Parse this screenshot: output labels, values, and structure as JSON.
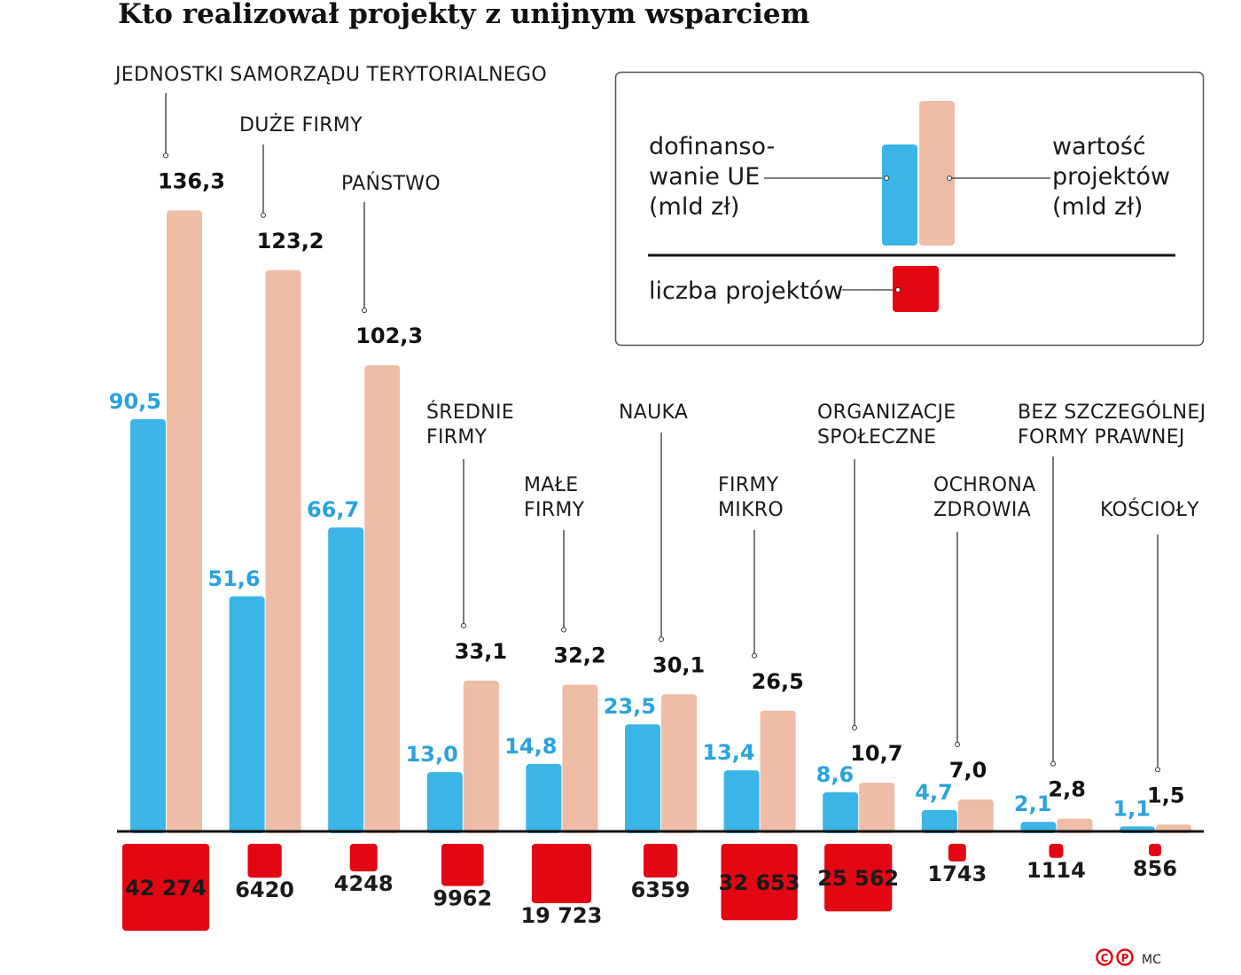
{
  "chart_data": {
    "type": "bar",
    "title": "Kto realizował projekty z unijnym wsparciem",
    "categories": [
      "JEDNOSTKI SAMORZĄDU TERYTORIALNEGO",
      "DUŻE FIRMY",
      "PAŃSTWO",
      "ŚREDNIE FIRMY",
      "MAŁE FIRMY",
      "NAUKA",
      "FIRMY MIKRO",
      "ORGANIZACJE SPOŁECZNE",
      "OCHRONA ZDROWIA",
      "BEZ SZCZEGÓLNEJ FORMY PRAWNEJ",
      "KOŚCIOŁY"
    ],
    "series": [
      {
        "name": "dofinansowanie UE (mld zł)",
        "color": "#3bb4e6",
        "values": [
          90.5,
          51.6,
          66.7,
          13.0,
          14.8,
          23.5,
          13.4,
          8.6,
          4.7,
          2.1,
          1.1
        ],
        "labels": [
          "90,5",
          "51,6",
          "66,7",
          "13,0",
          "14,8",
          "23,5",
          "13,4",
          "8,6",
          "4,7",
          "2,1",
          "1,1"
        ]
      },
      {
        "name": "wartość projektów (mld zł)",
        "color": "#efbca6",
        "values": [
          136.3,
          123.2,
          102.3,
          33.1,
          32.2,
          30.1,
          26.5,
          10.7,
          7.0,
          2.8,
          1.5
        ],
        "labels": [
          "136,3",
          "123,2",
          "102,3",
          "33,1",
          "32,2",
          "30,1",
          "26,5",
          "10,7",
          "7,0",
          "2,8",
          "1,5"
        ]
      },
      {
        "name": "liczba projektów",
        "color": "#e30613",
        "values": [
          42274,
          6420,
          4248,
          9962,
          19723,
          6359,
          32653,
          25562,
          1743,
          1114,
          856
        ],
        "labels": [
          "42 274",
          "6420",
          "4248",
          "9962",
          "19 723",
          "6359",
          "32 653",
          "25 562",
          "1743",
          "1114",
          "856"
        ]
      }
    ],
    "legend": {
      "placement": "top-right",
      "eu_lines": [
        "dofinanso-",
        "wanie UE",
        "(mld zł)"
      ],
      "value_lines": [
        "wartość",
        "projektów",
        "(mld zł)"
      ],
      "count_label": "liczba projektów"
    },
    "grid": false
  },
  "credit": {
    "logo_text": "©℗",
    "author": "MC"
  }
}
